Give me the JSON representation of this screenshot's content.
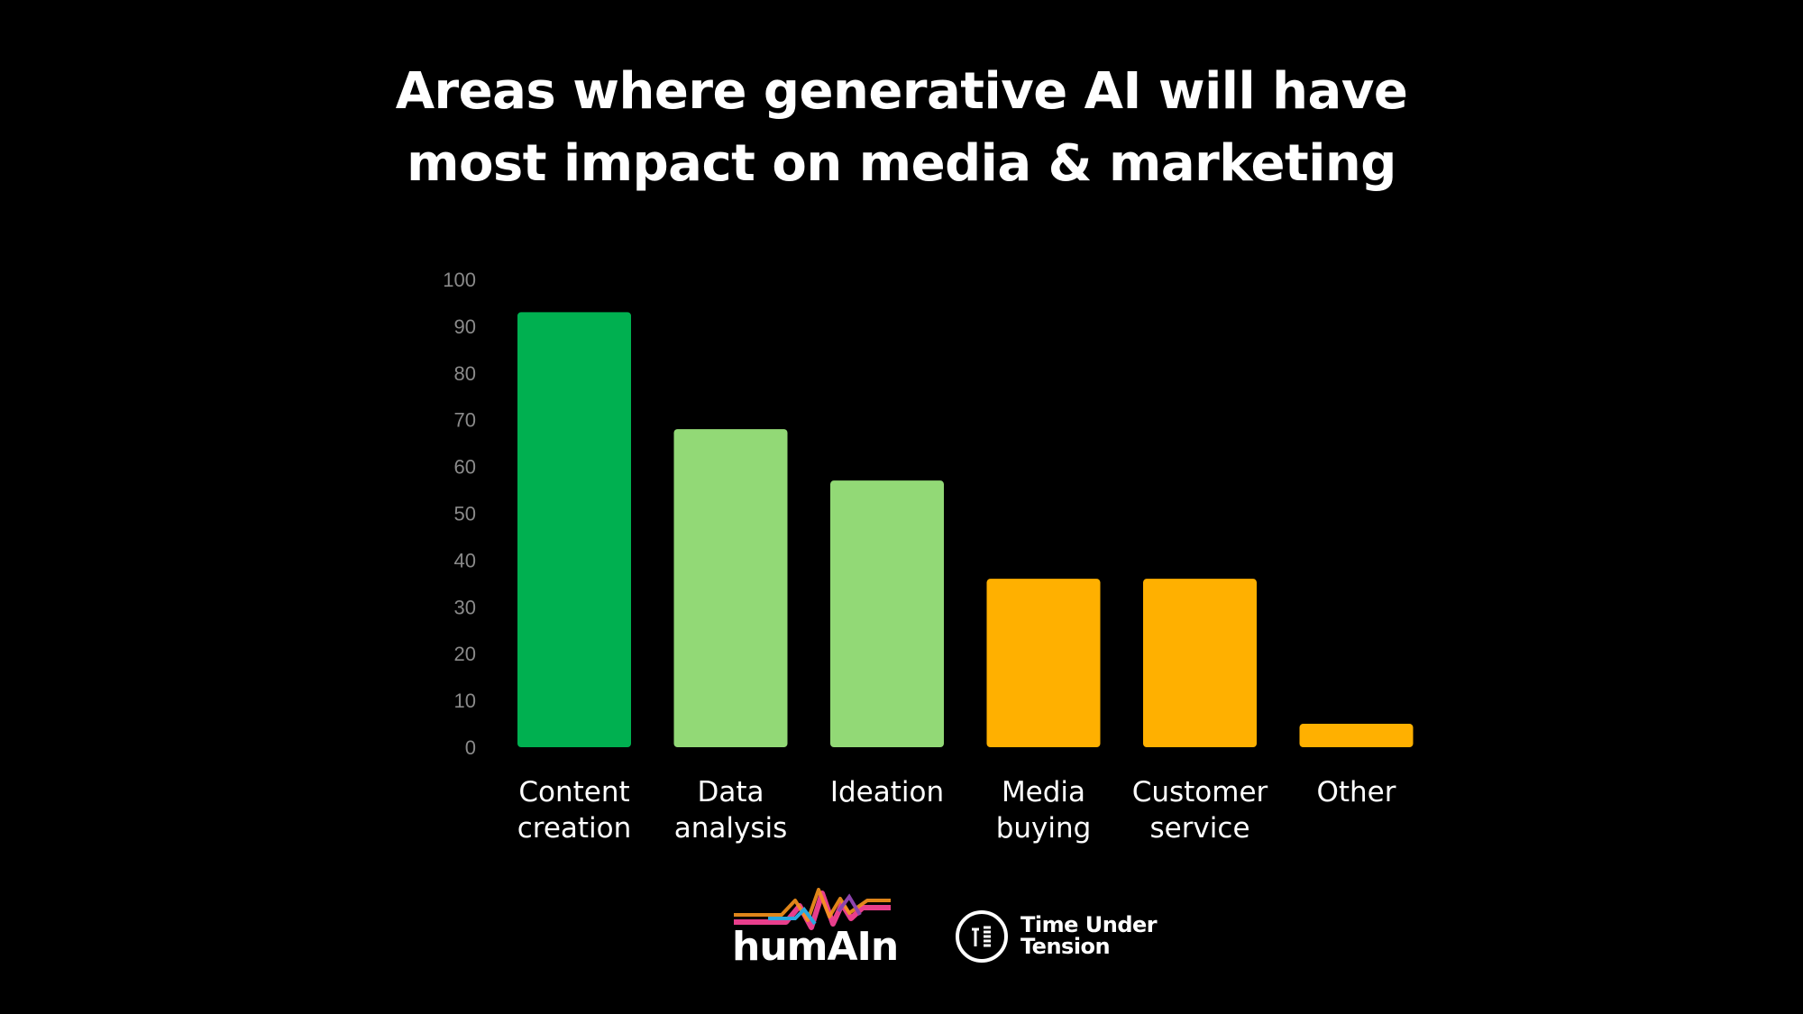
{
  "title_line1": "Areas where generative AI will have",
  "title_line2": "most impact on media & marketing",
  "chart_data": {
    "type": "bar",
    "title": "Areas where generative AI will have most impact on media & marketing",
    "categories": [
      [
        "Content",
        "creation"
      ],
      [
        "Data",
        "analysis"
      ],
      [
        "Ideation"
      ],
      [
        "Media",
        "buying"
      ],
      [
        "Customer",
        "service"
      ],
      [
        "Other"
      ]
    ],
    "values": [
      93,
      68,
      57,
      36,
      36,
      5
    ],
    "colors": [
      "#00b050",
      "#92d976",
      "#92d976",
      "#ffb000",
      "#ffb000",
      "#ffb000"
    ],
    "ylim": [
      0,
      100
    ],
    "yticks": [
      0,
      10,
      20,
      30,
      40,
      50,
      60,
      70,
      80,
      90,
      100
    ],
    "grid": false,
    "legend": "none"
  },
  "logos": {
    "humain": "humAIn",
    "tut_line1": "Time Under",
    "tut_line2": "Tension"
  }
}
